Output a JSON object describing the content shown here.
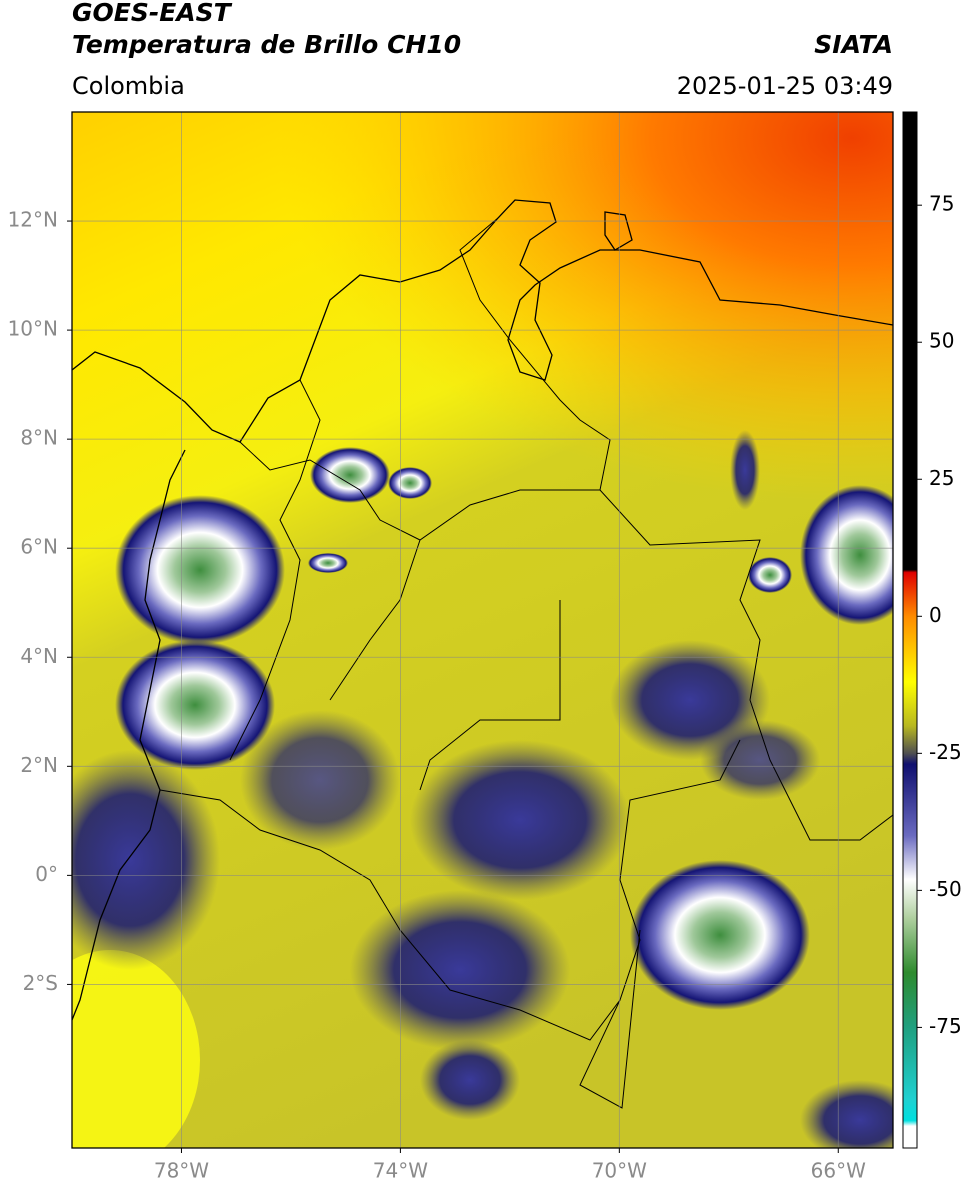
{
  "chart_data": {
    "type": "map",
    "title": "GOES-EAST",
    "subtitle": "Temperatura de Brillo CH10",
    "source": "SIATA",
    "region": "Colombia",
    "datetime": "2025-01-25 03:49",
    "xlim": [
      -80,
      -65
    ],
    "ylim": [
      -5,
      14
    ],
    "xticks": [
      {
        "value": -78,
        "label": "78°W"
      },
      {
        "value": -74,
        "label": "74°W"
      },
      {
        "value": -70,
        "label": "70°W"
      },
      {
        "value": -66,
        "label": "66°W"
      }
    ],
    "yticks": [
      {
        "value": 12,
        "label": "12°N"
      },
      {
        "value": 10,
        "label": "10°N"
      },
      {
        "value": 8,
        "label": "8°N"
      },
      {
        "value": 6,
        "label": "6°N"
      },
      {
        "value": 4,
        "label": "4°N"
      },
      {
        "value": 2,
        "label": "2°N"
      },
      {
        "value": 0,
        "label": "0°"
      },
      {
        "value": -2,
        "label": "2°S"
      }
    ],
    "grid": true,
    "colorbar": {
      "lim": [
        -97,
        92
      ],
      "ticks": [
        -75,
        -50,
        -25,
        0,
        25,
        50,
        75
      ],
      "cmap": [
        [
          92,
          "#000000"
        ],
        [
          8.5,
          "#000000"
        ],
        [
          8,
          "#e00000"
        ],
        [
          0,
          "#ff8c00"
        ],
        [
          -12,
          "#ffff00"
        ],
        [
          -20,
          "#b8b820"
        ],
        [
          -25,
          "#505050"
        ],
        [
          -27,
          "#101070"
        ],
        [
          -40,
          "#6a6ac0"
        ],
        [
          -48,
          "#ffffff"
        ],
        [
          -55,
          "#b0d0a0"
        ],
        [
          -65,
          "#2e8b2e"
        ],
        [
          -75,
          "#20a080"
        ],
        [
          -88,
          "#20d0d0"
        ],
        [
          -92,
          "#00e0e0"
        ],
        [
          -93,
          "#ffffff"
        ],
        [
          -97,
          "#ffffff"
        ]
      ]
    }
  }
}
